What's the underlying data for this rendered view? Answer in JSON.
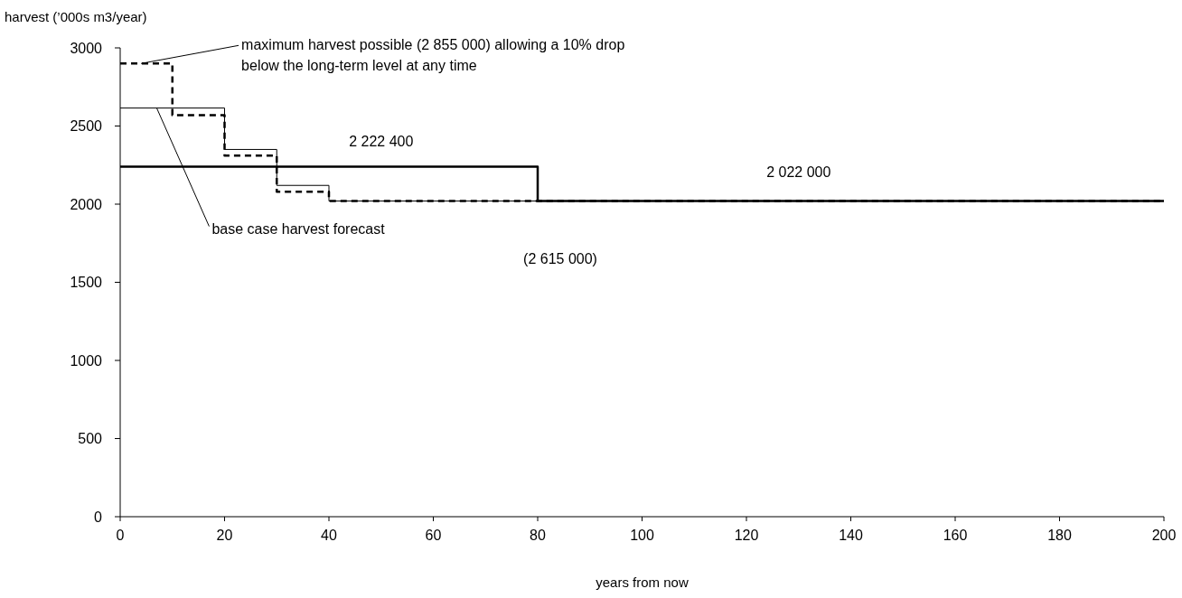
{
  "chart_data": {
    "type": "step",
    "ylabel": "harvest (’000s m3/year)",
    "xlabel": "years from now",
    "series": [
      {
        "color": "#000000",
        "line_style": "solid",
        "x": [
          0,
          80,
          200
        ],
        "values": [
          2240,
          2020,
          2020
        ]
      },
      {
        "color": "#000000",
        "line_style": "solid",
        "x": [
          0,
          20,
          30,
          40,
          200
        ],
        "values": [
          2615,
          2350,
          2120,
          2020,
          2020
        ]
      },
      {
        "color": "#000000",
        "line_style": "dashed",
        "x": [
          0,
          10,
          20,
          30,
          40,
          200
        ],
        "values": [
          2900,
          2570,
          2310,
          2080,
          2020,
          2020
        ]
      }
    ],
    "xlim": [
      0,
      200
    ],
    "xticks": [
      0,
      20,
      40,
      60,
      80,
      100,
      120,
      140,
      160,
      180,
      200
    ],
    "ylim": [
      0,
      3000
    ],
    "yticks": [
      0,
      500,
      1000,
      1500,
      2000,
      2500,
      3000
    ],
    "grid": false,
    "legend": false,
    "marker": "none",
    "annotations": [
      {
        "text": "maximum harvest possible (2 855 000) allowing a 10% drop below the long-term level at any time",
        "x": 4,
        "y": 2900
      },
      {
        "text": "base case harvest forecast",
        "x": 7,
        "y": 2615
      },
      {
        "text": "2 222 400",
        "x": 50,
        "y": 2240
      },
      {
        "text": "2 022 000",
        "x": 130,
        "y": 2020
      },
      "(2 615 000)"
    ]
  }
}
